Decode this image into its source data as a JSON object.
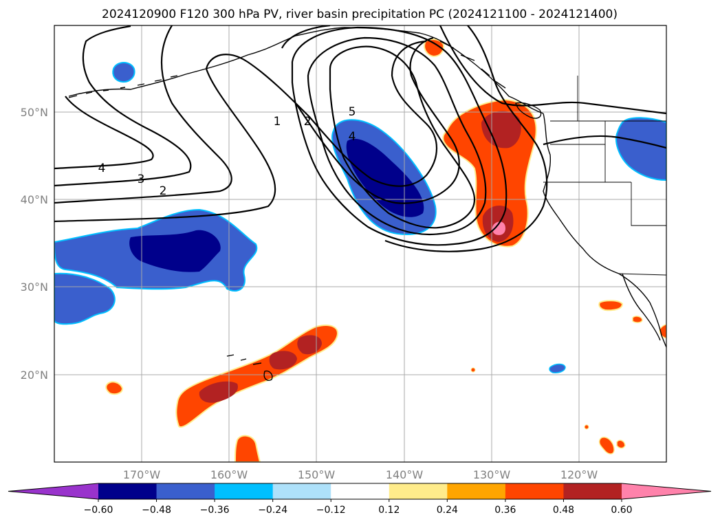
{
  "title": "2024120900 F120 300 hPa PV, river basin precipitation PC (2024121100 - 2024121400)",
  "map": {
    "lon_labels": [
      "170°W",
      "160°W",
      "150°W",
      "140°W",
      "130°W",
      "120°W"
    ],
    "lat_labels": [
      "50°N",
      "40°N",
      "30°N",
      "20°N"
    ],
    "gridlines": true
  },
  "pv_contour_labels": [
    "1",
    "2",
    "5",
    "4",
    "4",
    "3",
    "2"
  ],
  "colorbar": {
    "ticks": [
      "−0.60",
      "−0.48",
      "−0.36",
      "−0.24",
      "−0.12",
      "0.12",
      "0.24",
      "0.36",
      "0.48",
      "0.60"
    ],
    "colors": [
      "#9933cc",
      "#00008b",
      "#3a5fcd",
      "#00bfff",
      "#aee1fa",
      "#ffffff",
      "#ffec8b",
      "#ffa500",
      "#ff4500",
      "#b22222",
      "#ff82ab"
    ],
    "extend": "both"
  }
}
